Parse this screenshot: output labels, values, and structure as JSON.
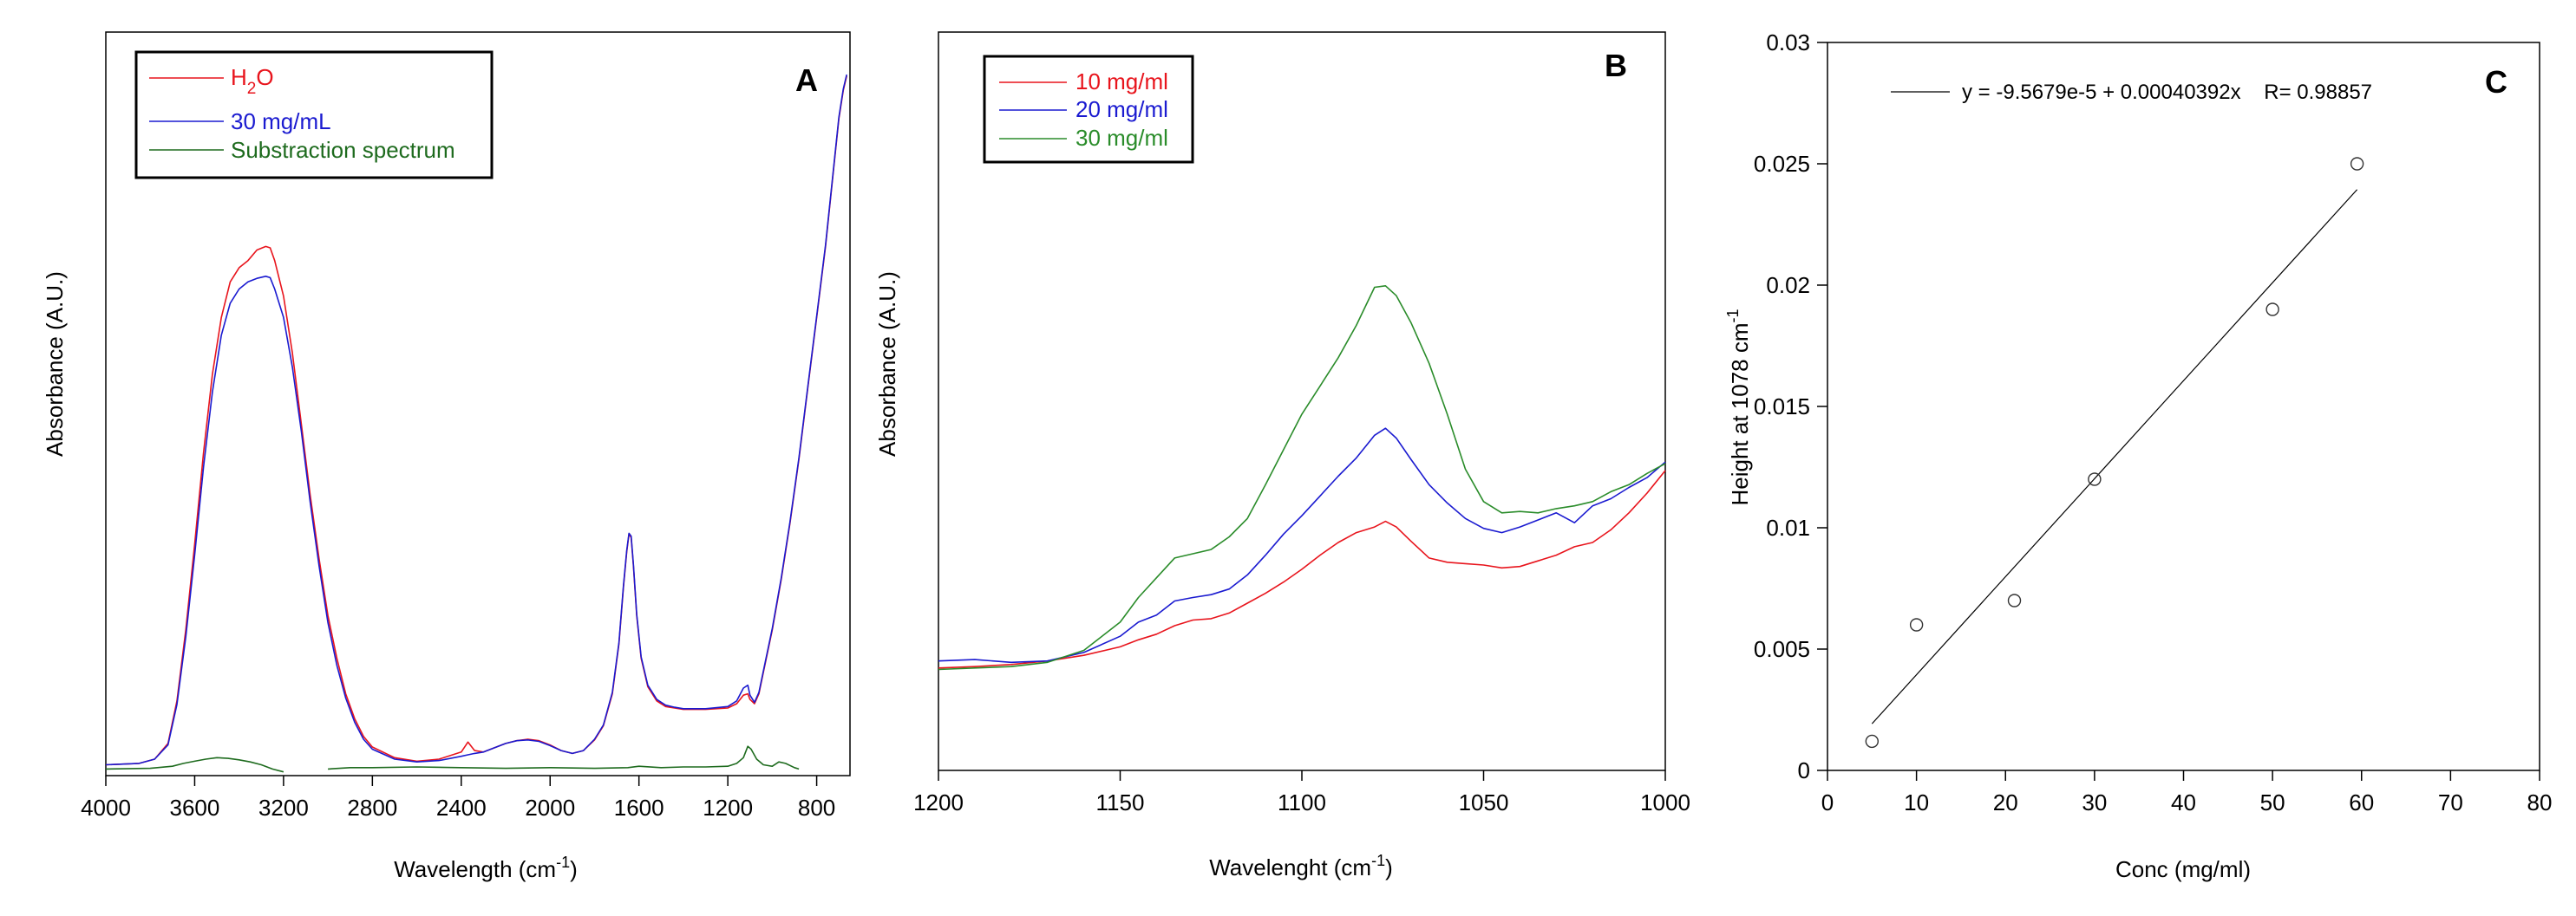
{
  "chart_data": [
    {
      "type": "line",
      "panel": "A",
      "xlabel": "Wavelength (cm",
      "xlabel_sup": "-1",
      "xlabel_end": ")",
      "ylabel": "Absorbance (A.U.)",
      "xlim": [
        4000,
        650
      ],
      "ylim": [
        0,
        1.0
      ],
      "x_reversed": true,
      "xticks": [
        "4000",
        "3600",
        "3200",
        "2800",
        "2400",
        "2000",
        "1600",
        "1200",
        "800"
      ],
      "legend_position": "top-left",
      "series": [
        {
          "name_parts": [
            "H",
            "2",
            "O"
          ],
          "color": "#e8141c",
          "x": [
            4000,
            3850,
            3780,
            3720,
            3680,
            3640,
            3600,
            3560,
            3520,
            3480,
            3440,
            3400,
            3360,
            3320,
            3280,
            3260,
            3240,
            3200,
            3160,
            3120,
            3080,
            3040,
            3000,
            2960,
            2920,
            2880,
            2840,
            2800,
            2700,
            2600,
            2500,
            2400,
            2370,
            2340,
            2300,
            2200,
            2150,
            2100,
            2050,
            2000,
            1950,
            1900,
            1850,
            1800,
            1760,
            1720,
            1690,
            1670,
            1655,
            1645,
            1635,
            1625,
            1610,
            1590,
            1560,
            1520,
            1480,
            1440,
            1400,
            1300,
            1200,
            1160,
            1130,
            1110,
            1100,
            1080,
            1060,
            1040,
            1000,
            960,
            920,
            880,
            840,
            800,
            760,
            730,
            700,
            680,
            665
          ],
          "values": [
            0.01,
            0.012,
            0.018,
            0.04,
            0.1,
            0.2,
            0.32,
            0.45,
            0.56,
            0.64,
            0.69,
            0.71,
            0.72,
            0.735,
            0.74,
            0.738,
            0.72,
            0.67,
            0.59,
            0.49,
            0.39,
            0.3,
            0.22,
            0.16,
            0.11,
            0.075,
            0.05,
            0.035,
            0.02,
            0.015,
            0.018,
            0.028,
            0.042,
            0.03,
            0.028,
            0.04,
            0.044,
            0.046,
            0.044,
            0.038,
            0.03,
            0.026,
            0.03,
            0.045,
            0.065,
            0.11,
            0.18,
            0.26,
            0.31,
            0.335,
            0.33,
            0.29,
            0.22,
            0.16,
            0.12,
            0.1,
            0.092,
            0.09,
            0.088,
            0.088,
            0.09,
            0.096,
            0.108,
            0.11,
            0.102,
            0.096,
            0.11,
            0.14,
            0.2,
            0.27,
            0.35,
            0.44,
            0.54,
            0.64,
            0.74,
            0.83,
            0.92,
            0.96,
            0.98
          ]
        },
        {
          "name": "30 mg/mL",
          "color": "#1a1ad0",
          "x": [
            4000,
            3850,
            3780,
            3720,
            3680,
            3640,
            3600,
            3560,
            3520,
            3480,
            3440,
            3400,
            3360,
            3320,
            3280,
            3260,
            3240,
            3200,
            3160,
            3120,
            3080,
            3040,
            3000,
            2960,
            2920,
            2880,
            2840,
            2800,
            2700,
            2600,
            2500,
            2400,
            2370,
            2340,
            2300,
            2200,
            2150,
            2100,
            2050,
            2000,
            1950,
            1900,
            1850,
            1800,
            1760,
            1720,
            1690,
            1670,
            1655,
            1645,
            1635,
            1625,
            1610,
            1590,
            1560,
            1520,
            1480,
            1440,
            1400,
            1300,
            1200,
            1160,
            1130,
            1110,
            1100,
            1080,
            1060,
            1040,
            1000,
            960,
            920,
            880,
            840,
            800,
            760,
            730,
            700,
            680,
            665
          ],
          "values": [
            0.01,
            0.012,
            0.018,
            0.038,
            0.095,
            0.19,
            0.305,
            0.43,
            0.535,
            0.615,
            0.66,
            0.68,
            0.69,
            0.695,
            0.698,
            0.696,
            0.68,
            0.64,
            0.57,
            0.48,
            0.38,
            0.29,
            0.21,
            0.15,
            0.104,
            0.07,
            0.046,
            0.032,
            0.018,
            0.014,
            0.016,
            0.022,
            0.024,
            0.026,
            0.028,
            0.04,
            0.044,
            0.045,
            0.043,
            0.037,
            0.03,
            0.026,
            0.03,
            0.046,
            0.066,
            0.112,
            0.182,
            0.262,
            0.312,
            0.336,
            0.332,
            0.292,
            0.222,
            0.162,
            0.122,
            0.102,
            0.094,
            0.091,
            0.089,
            0.089,
            0.092,
            0.1,
            0.118,
            0.122,
            0.108,
            0.098,
            0.112,
            0.142,
            0.202,
            0.272,
            0.352,
            0.442,
            0.542,
            0.642,
            0.742,
            0.832,
            0.922,
            0.962,
            0.982
          ]
        },
        {
          "name": "Substraction spectrum",
          "color": "#1e6b1e",
          "x": [
            4000,
            3800,
            3700,
            3650,
            3600,
            3550,
            3500,
            3450,
            3400,
            3350,
            3300,
            3250,
            3200,
            3100,
            3000,
            2900,
            2800,
            2600,
            2400,
            2200,
            2000,
            1800,
            1650,
            1600,
            1500,
            1400,
            1300,
            1200,
            1160,
            1130,
            1110,
            1095,
            1070,
            1040,
            1000,
            970,
            940,
            900,
            880
          ],
          "values": [
            0.004,
            0.005,
            0.008,
            0.012,
            0.015,
            0.018,
            0.02,
            0.019,
            0.017,
            0.014,
            0.01,
            0.004,
            0.0,
            null,
            0.004,
            0.006,
            0.006,
            0.007,
            0.006,
            0.005,
            0.006,
            0.005,
            0.006,
            0.008,
            0.006,
            0.007,
            0.007,
            0.008,
            0.012,
            0.02,
            0.036,
            0.032,
            0.018,
            0.01,
            0.008,
            0.014,
            0.012,
            0.006,
            0.004
          ]
        }
      ],
      "annotation": "A"
    },
    {
      "type": "line",
      "panel": "B",
      "xlabel": "Wavelenght (cm",
      "xlabel_sup": "-1",
      "xlabel_end": ")",
      "ylabel": "Absorbance (A.U.)",
      "xlim": [
        1200,
        1000
      ],
      "ylim": [
        0,
        1.0
      ],
      "x_reversed": true,
      "xticks": [
        "1200",
        "1150",
        "1100",
        "1050",
        "1000"
      ],
      "legend_position": "top-left",
      "series": [
        {
          "name": "10 mg/ml",
          "color": "#e8141c",
          "x": [
            1200,
            1190,
            1180,
            1170,
            1160,
            1150,
            1145,
            1140,
            1135,
            1130,
            1125,
            1120,
            1115,
            1110,
            1105,
            1100,
            1095,
            1090,
            1085,
            1080,
            1077,
            1074,
            1070,
            1065,
            1060,
            1055,
            1050,
            1045,
            1040,
            1035,
            1030,
            1025,
            1020,
            1015,
            1010,
            1005,
            1000
          ],
          "values": [
            0.14,
            0.142,
            0.145,
            0.15,
            0.158,
            0.17,
            0.18,
            0.188,
            0.2,
            0.208,
            0.21,
            0.218,
            0.232,
            0.246,
            0.262,
            0.28,
            0.3,
            0.318,
            0.332,
            0.34,
            0.348,
            0.34,
            0.32,
            0.296,
            0.29,
            0.288,
            0.286,
            0.282,
            0.284,
            0.292,
            0.3,
            0.312,
            0.318,
            0.336,
            0.36,
            0.388,
            0.42
          ]
        },
        {
          "name": "20 mg/ml",
          "color": "#1a1ad0",
          "x": [
            1200,
            1190,
            1180,
            1170,
            1160,
            1150,
            1145,
            1140,
            1135,
            1130,
            1125,
            1120,
            1115,
            1110,
            1105,
            1100,
            1095,
            1090,
            1085,
            1080,
            1077,
            1074,
            1070,
            1065,
            1060,
            1055,
            1050,
            1045,
            1040,
            1035,
            1030,
            1025,
            1020,
            1015,
            1010,
            1005,
            1000
          ],
          "values": [
            0.15,
            0.152,
            0.148,
            0.15,
            0.162,
            0.185,
            0.205,
            0.215,
            0.235,
            0.24,
            0.244,
            0.252,
            0.272,
            0.3,
            0.33,
            0.356,
            0.384,
            0.412,
            0.438,
            0.47,
            0.48,
            0.466,
            0.436,
            0.4,
            0.374,
            0.352,
            0.338,
            0.332,
            0.34,
            0.35,
            0.36,
            0.346,
            0.37,
            0.38,
            0.396,
            0.41,
            0.432
          ]
        },
        {
          "name": "30 mg/ml",
          "color": "#2a8c2a",
          "x": [
            1200,
            1190,
            1180,
            1170,
            1160,
            1150,
            1145,
            1140,
            1135,
            1130,
            1125,
            1120,
            1115,
            1110,
            1105,
            1100,
            1095,
            1090,
            1085,
            1080,
            1077,
            1074,
            1070,
            1065,
            1060,
            1055,
            1050,
            1045,
            1040,
            1035,
            1030,
            1025,
            1020,
            1015,
            1010,
            1005,
            1000
          ],
          "values": [
            0.138,
            0.14,
            0.142,
            0.148,
            0.165,
            0.205,
            0.24,
            0.268,
            0.296,
            0.302,
            0.308,
            0.326,
            0.352,
            0.4,
            0.45,
            0.5,
            0.54,
            0.58,
            0.626,
            0.68,
            0.682,
            0.668,
            0.63,
            0.572,
            0.5,
            0.422,
            0.376,
            0.36,
            0.362,
            0.36,
            0.366,
            0.37,
            0.376,
            0.39,
            0.4,
            0.416,
            0.43
          ]
        }
      ],
      "annotation": "B"
    },
    {
      "type": "scatter",
      "panel": "C",
      "xlabel": "Conc (mg/ml)",
      "ylabel_parts": [
        "Height at 1078 cm",
        "-1"
      ],
      "xlim": [
        0,
        80
      ],
      "ylim": [
        0,
        0.03
      ],
      "xticks": [
        "0",
        "10",
        "20",
        "30",
        "40",
        "50",
        "60",
        "70",
        "80"
      ],
      "yticks": [
        "0",
        "0.005",
        "0.01",
        "0.015",
        "0.02",
        "0.025",
        "0.03"
      ],
      "points": {
        "x": [
          5,
          10,
          21,
          30,
          50,
          59.5
        ],
        "y": [
          0.0012,
          0.006,
          0.007,
          0.012,
          0.019,
          0.025
        ]
      },
      "fit": {
        "x_range": [
          5,
          59.5
        ],
        "intercept": -9.5679e-05,
        "slope": 0.00040392,
        "label": "y = -9.5679e-5 + 0.00040392x    R= 0.98857"
      },
      "annotation": "C"
    }
  ],
  "colors": {
    "red": "#e8141c",
    "blue": "#1a1ad0",
    "dark_green": "#1e6b1e",
    "green": "#2a8c2a"
  }
}
